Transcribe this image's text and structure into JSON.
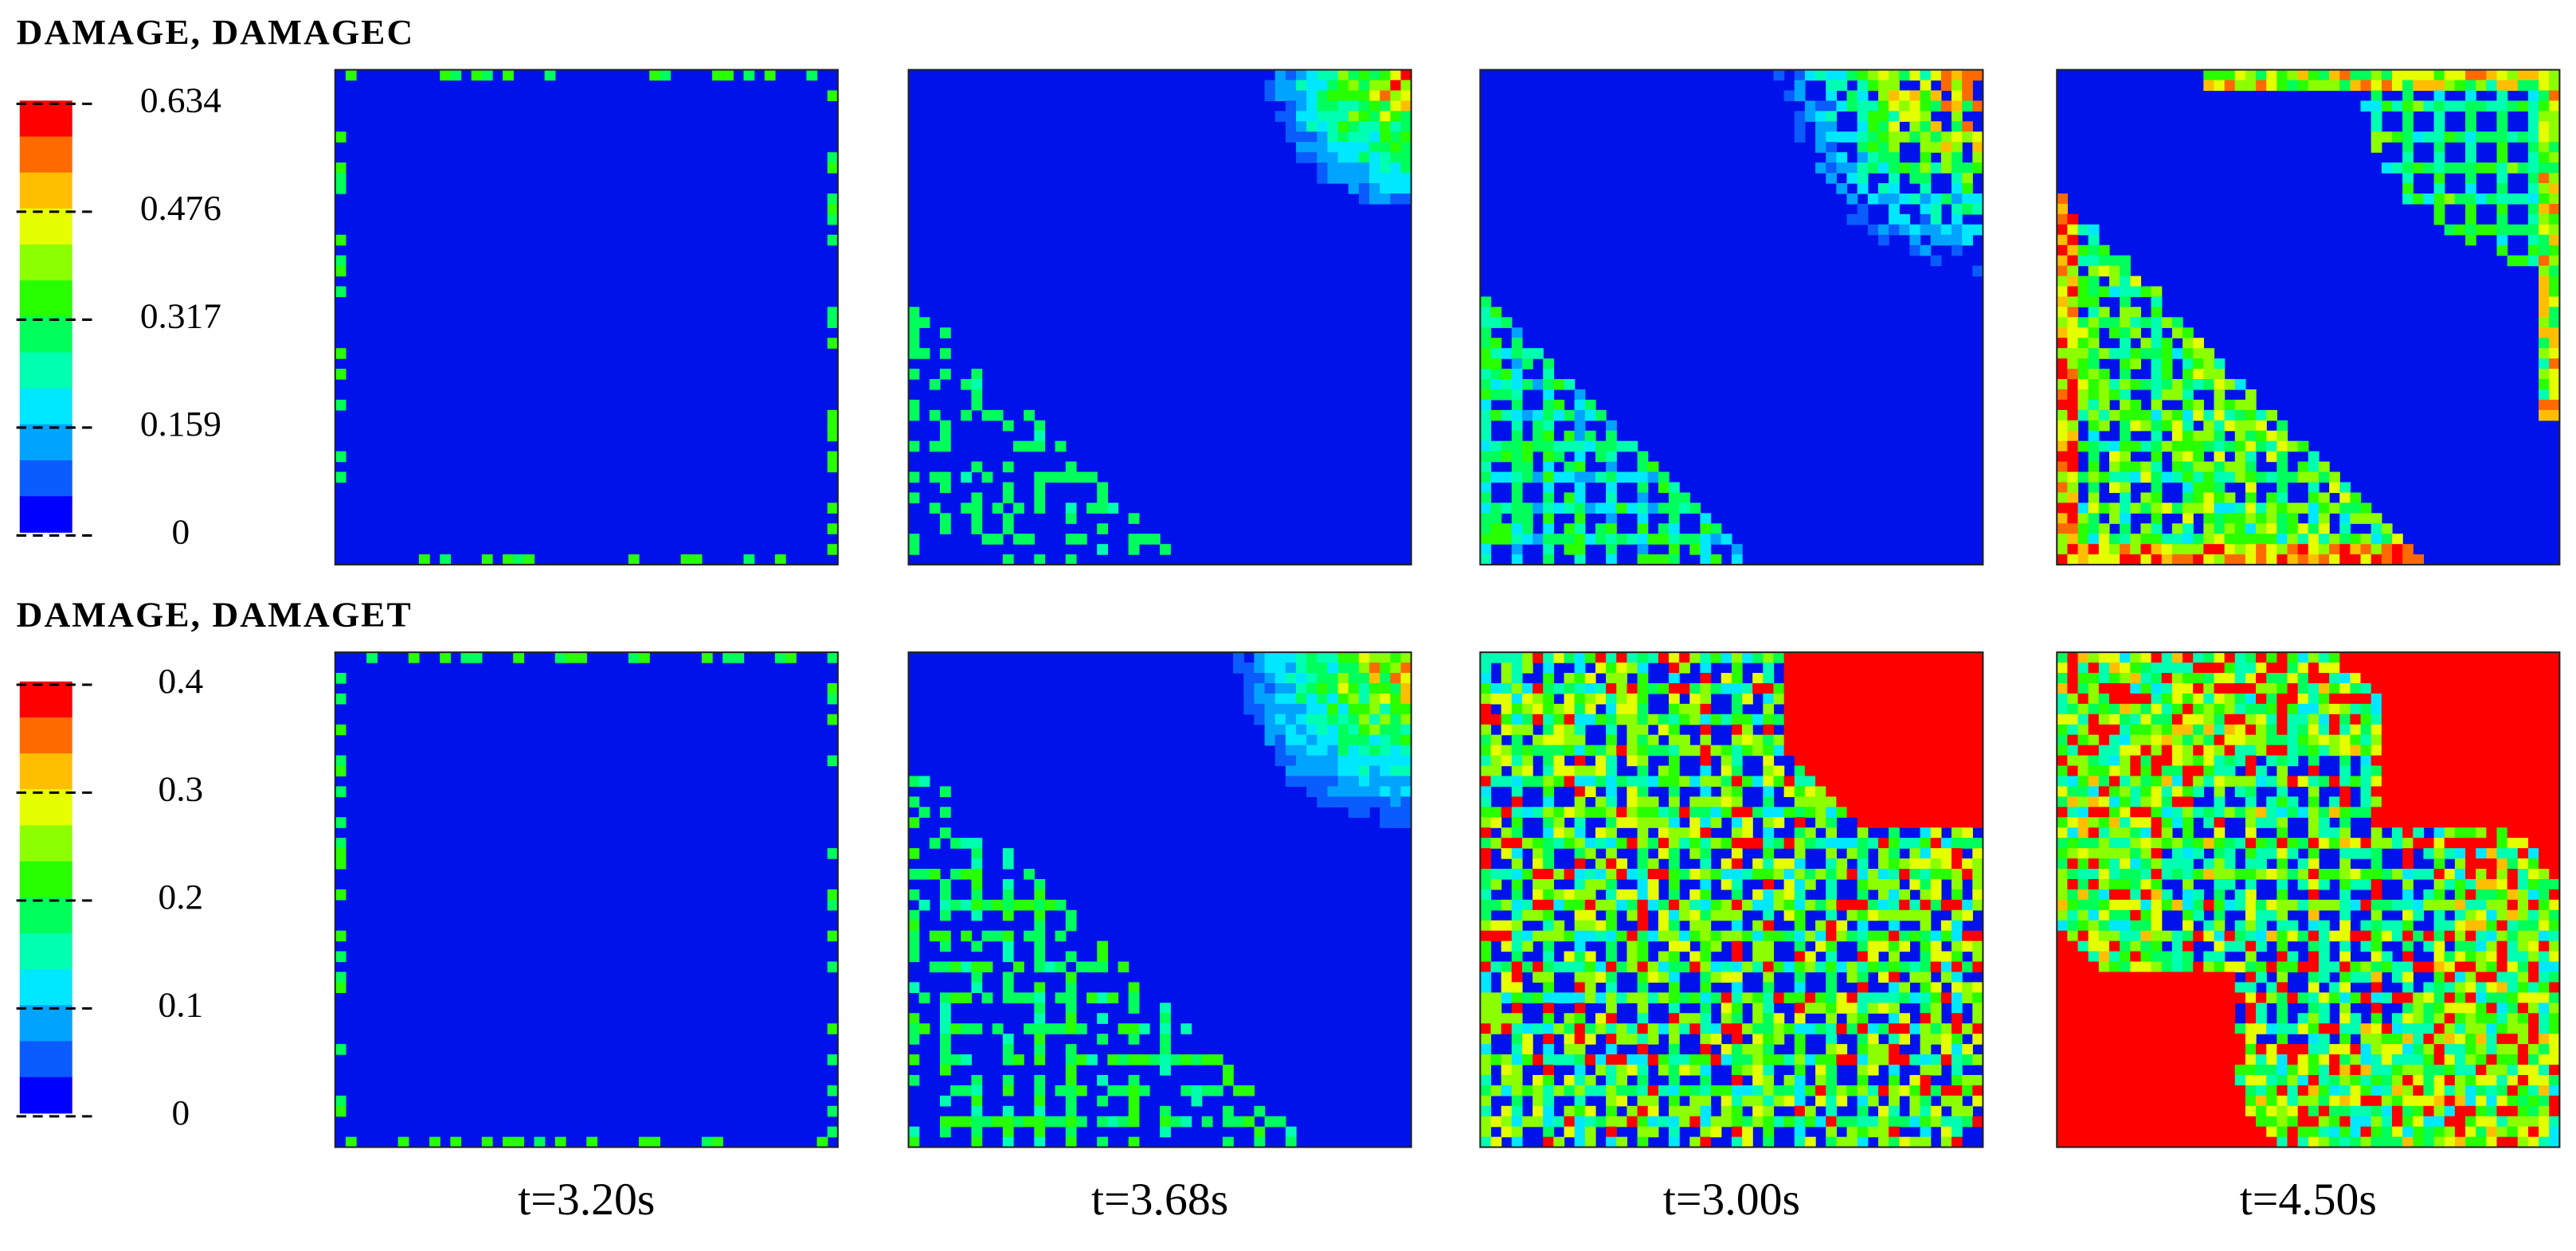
{
  "rows": [
    {
      "title": "DAMAGE, DAMAGEC",
      "legend_ticks": [
        "0.634",
        "0.476",
        "0.317",
        "0.159",
        "0"
      ]
    },
    {
      "title": "DAMAGE, DAMAGET",
      "legend_ticks": [
        "0.4",
        "0.3",
        "0.2",
        "0.1",
        "0"
      ]
    }
  ],
  "time_labels": [
    "t=3.20s",
    "t=3.68s",
    "t=3.00s",
    "t=4.50s"
  ]
}
